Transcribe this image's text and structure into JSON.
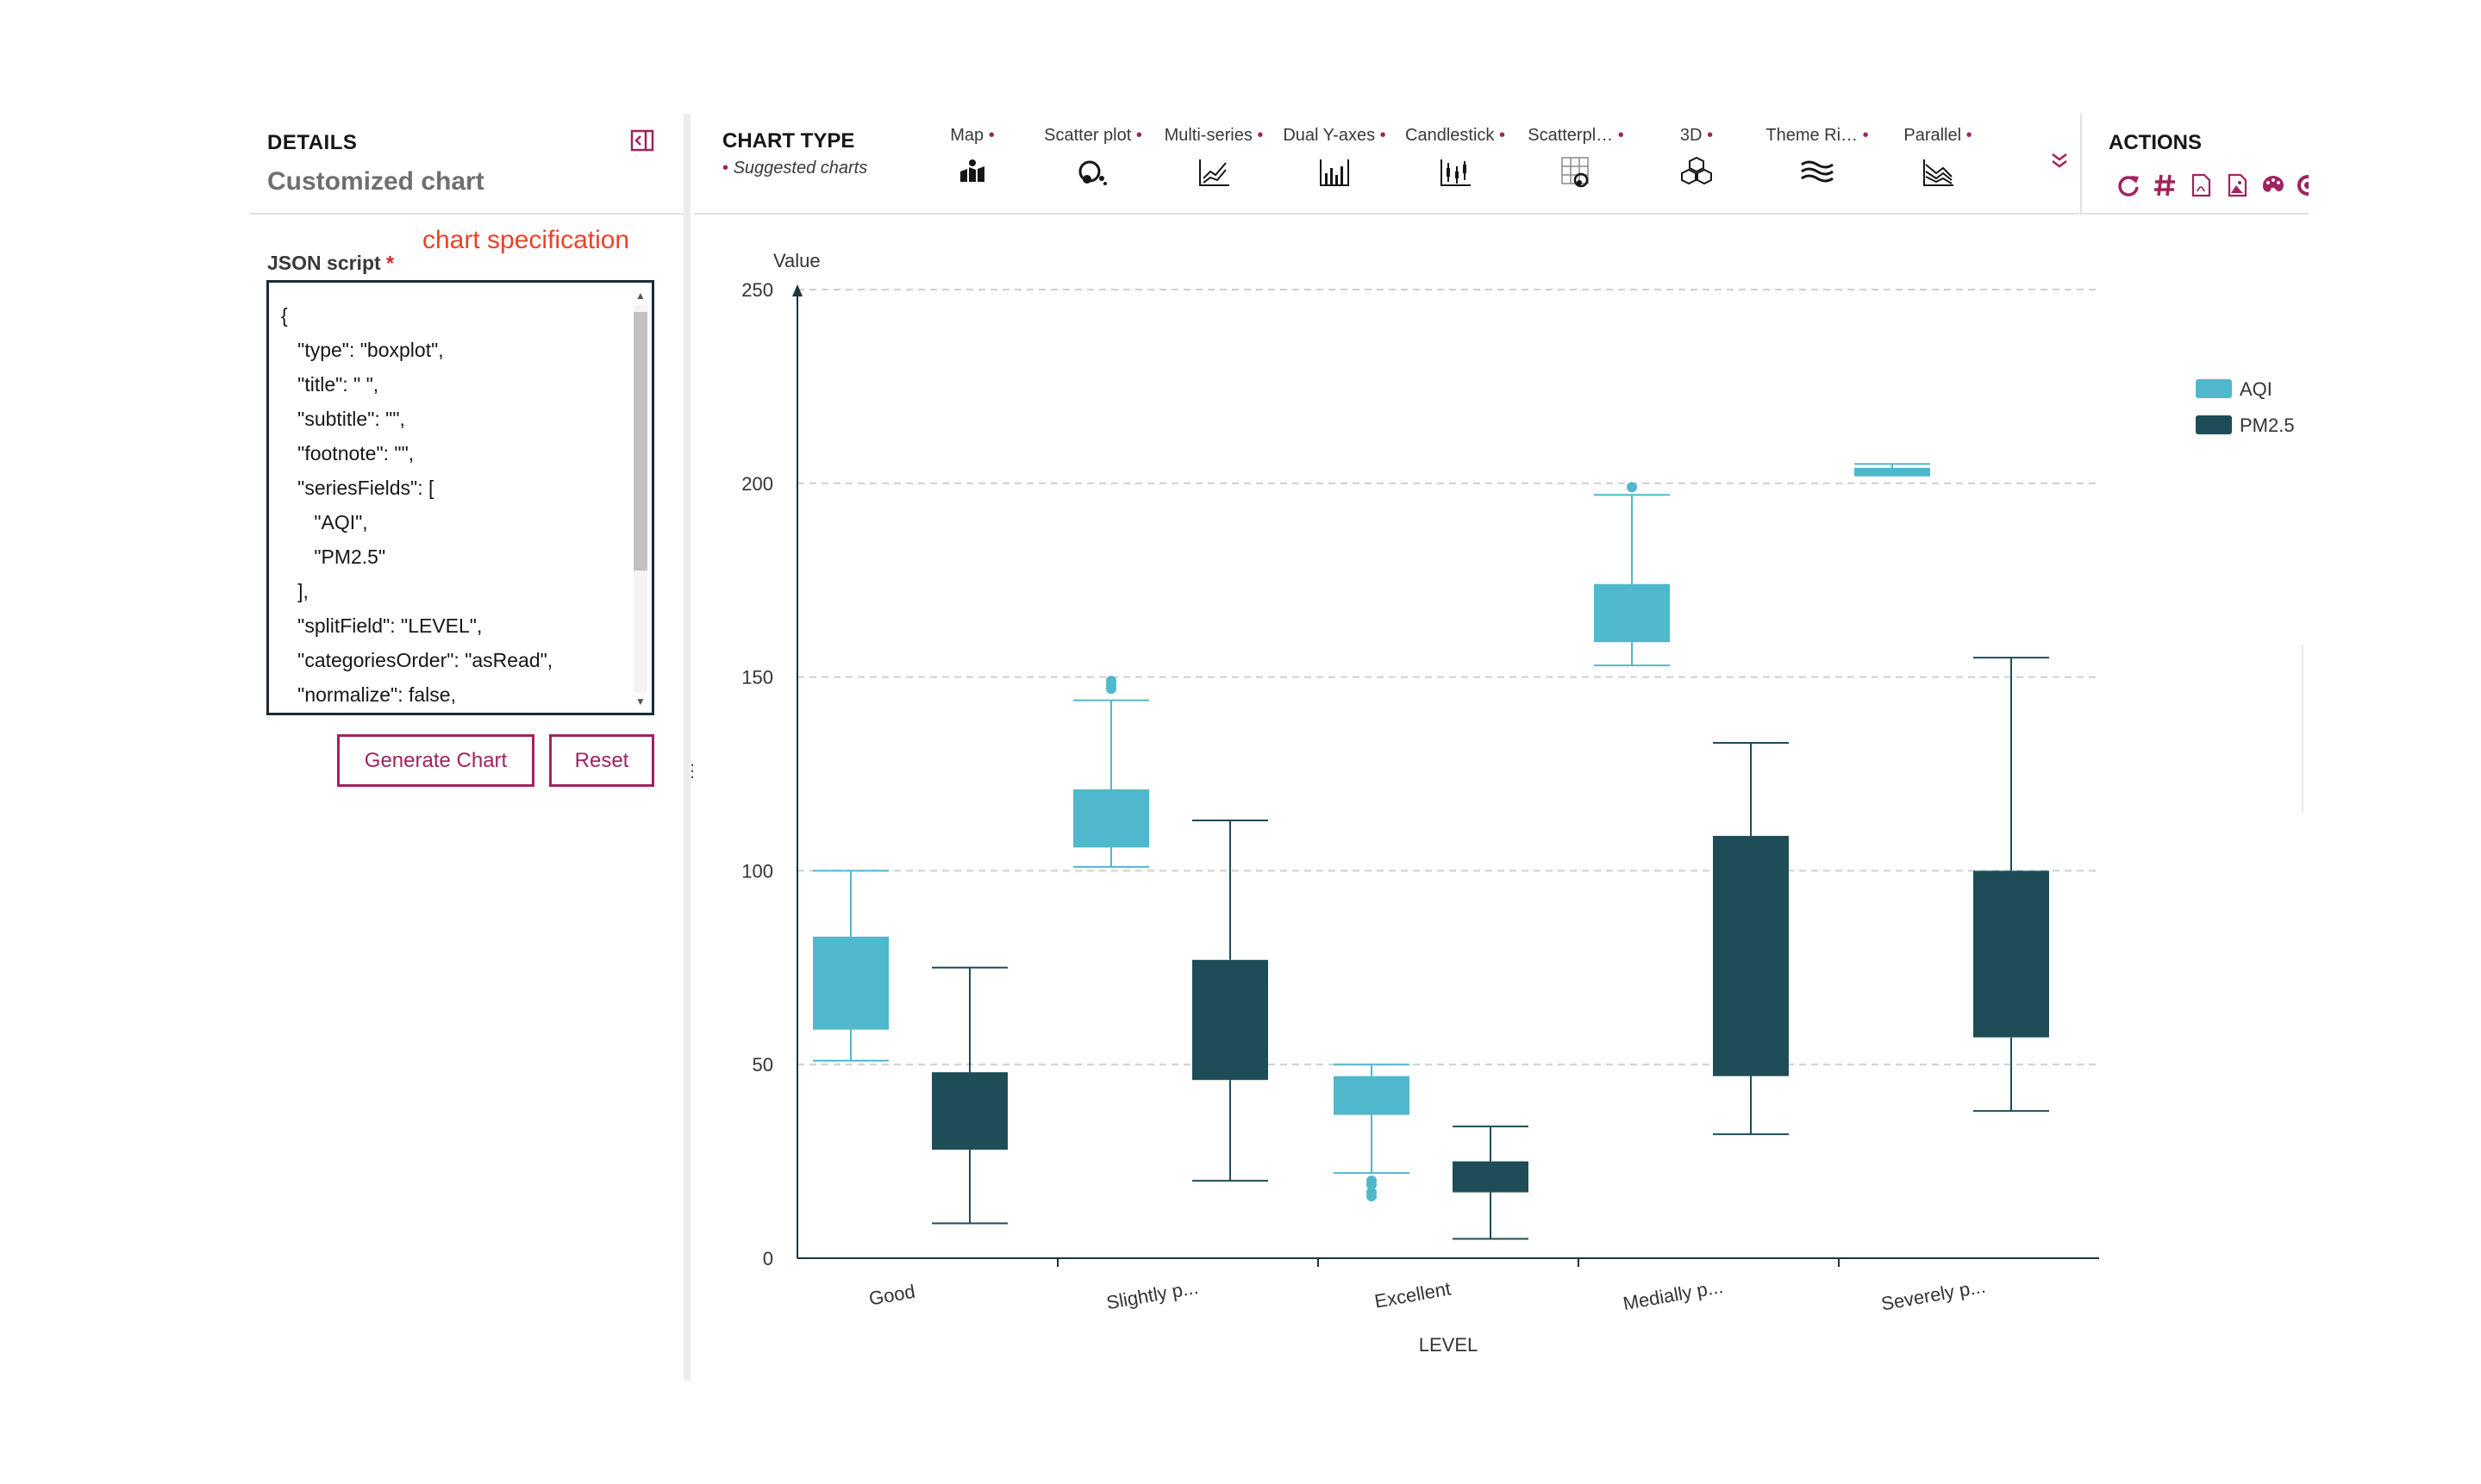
{
  "details": {
    "title": "DETAILS",
    "subtitle": "Customized chart",
    "json_label": "JSON script",
    "required_mark": "*",
    "annotation": "chart specification",
    "json_script": "{\n   \"type\": \"boxplot\",\n   \"title\": \" \",\n   \"subtitle\": \"\",\n   \"footnote\": \"\",\n   \"seriesFields\": [\n      \"AQI\",\n      \"PM2.5\"\n   ],\n   \"splitField\": \"LEVEL\",\n   \"categoriesOrder\": \"asRead\",\n   \"normalize\": false,",
    "generate_label": "Generate Chart",
    "reset_label": "Reset"
  },
  "toolbar": {
    "title": "CHART TYPE",
    "suggested_label": "Suggested charts",
    "items": [
      {
        "label": "Map",
        "icon": "map-icon"
      },
      {
        "label": "Scatter plot",
        "icon": "scatter-icon"
      },
      {
        "label": "Multi-series",
        "icon": "multi-series-icon"
      },
      {
        "label": "Dual Y-axes",
        "icon": "dual-axes-icon"
      },
      {
        "label": "Candlestick",
        "icon": "candlestick-icon"
      },
      {
        "label": "Scatterpl…",
        "icon": "scatterplot-matrix-icon"
      },
      {
        "label": "3D",
        "icon": "3d-icon"
      },
      {
        "label": "Theme Ri…",
        "icon": "theme-river-icon"
      },
      {
        "label": "Parallel",
        "icon": "parallel-icon"
      }
    ],
    "accent": "#a0235e"
  },
  "actions": {
    "title": "ACTIONS",
    "icons": [
      "refresh-icon",
      "hash-icon",
      "pdf-icon",
      "image-icon",
      "palette-icon",
      "settings-icon"
    ]
  },
  "chart_data": {
    "type": "boxplot",
    "title": "",
    "xlabel": "LEVEL",
    "ylabel": "Value",
    "ylim": [
      0,
      250
    ],
    "yticks": [
      0,
      50,
      100,
      150,
      200,
      250
    ],
    "grid": true,
    "legend_position": "top-right",
    "categories": [
      "Good",
      "Slightly p...",
      "Excellent",
      "Medially p...",
      "Severely p..."
    ],
    "series": [
      {
        "name": "AQI",
        "color": "#4fb8cc",
        "boxes": [
          {
            "min": 51,
            "q1": 59,
            "median": 69,
            "q3": 83,
            "max": 100,
            "outliers": []
          },
          {
            "min": 101,
            "q1": 106,
            "median": 114,
            "q3": 121,
            "max": 144,
            "outliers": [
              147,
              148,
              149
            ]
          },
          {
            "min": 22,
            "q1": 37,
            "median": 44,
            "q3": 47,
            "max": 50,
            "outliers": [
              16,
              17,
              19,
              20
            ]
          },
          {
            "min": 153,
            "q1": 159,
            "median": 167,
            "q3": 174,
            "max": 197,
            "outliers": [
              199
            ]
          },
          {
            "min": 202,
            "q1": 202,
            "median": 203,
            "q3": 204,
            "max": 205,
            "outliers": []
          }
        ]
      },
      {
        "name": "PM2.5",
        "color": "#1e4d57",
        "boxes": [
          {
            "min": 9,
            "q1": 28,
            "median": 38,
            "q3": 48,
            "max": 75,
            "outliers": []
          },
          {
            "min": 20,
            "q1": 46,
            "median": 61,
            "q3": 77,
            "max": 113,
            "outliers": []
          },
          {
            "min": 5,
            "q1": 17,
            "median": 21,
            "q3": 25,
            "max": 34,
            "outliers": []
          },
          {
            "min": 32,
            "q1": 47,
            "median": 78,
            "q3": 109,
            "max": 133,
            "outliers": []
          },
          {
            "min": 38,
            "q1": 57,
            "median": 80,
            "q3": 100,
            "max": 155,
            "outliers": []
          }
        ]
      }
    ]
  }
}
